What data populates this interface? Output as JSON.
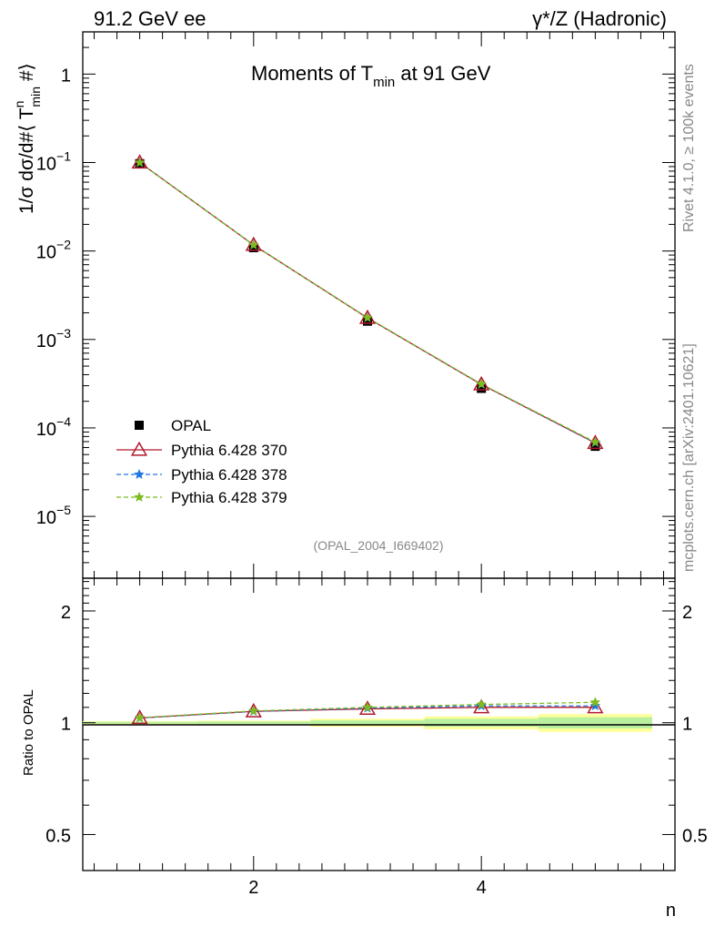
{
  "header": {
    "left": "91.2 GeV ee",
    "right": "γ*/Z (Hadronic)"
  },
  "side_text": {
    "rivet": "Rivet 4.1.0, ≥ 100k events",
    "mcplots": "mcplots.cern.ch [arXiv:2401.10621]"
  },
  "chart_data": [
    {
      "type": "line",
      "title_parts": [
        "Moments of T",
        "min",
        " at 91 GeV"
      ],
      "ylabel": "1/σ  dσ/d#⟨ T^n_min #⟩",
      "ylabel_parts": [
        "1/σ  dσ/d#⟨ T",
        "n",
        "min",
        " #⟩"
      ],
      "log_y": true,
      "xlim": [
        0.5,
        5.7
      ],
      "ylim": [
        2e-06,
        3
      ],
      "y_ticks": [
        {
          "value": 1,
          "base": "1",
          "exp": ""
        },
        {
          "value": 0.1,
          "base": "10",
          "exp": "−1"
        },
        {
          "value": 0.01,
          "base": "10",
          "exp": "−2"
        },
        {
          "value": 0.001,
          "base": "10",
          "exp": "−3"
        },
        {
          "value": 0.0001,
          "base": "10",
          "exp": "−4"
        },
        {
          "value": 1e-05,
          "base": "10",
          "exp": "−5"
        }
      ],
      "x": [
        1,
        2,
        3,
        4,
        5
      ],
      "series": [
        {
          "name": "OPAL",
          "values": [
            0.097,
            0.0109,
            0.00161,
            0.00028,
            6.2e-05
          ],
          "color": "#000000",
          "marker": "square"
        },
        {
          "name": "Pythia 6.428 370",
          "values": [
            0.1,
            0.0117,
            0.00175,
            0.00031,
            6.75e-05
          ],
          "color": "#b2182b",
          "marker": "triangle"
        },
        {
          "name": "Pythia 6.428 378",
          "values": [
            0.1,
            0.0117,
            0.00176,
            0.000311,
            6.82e-05
          ],
          "color": "#1f78e0",
          "marker": "star",
          "dashed": true
        },
        {
          "name": "Pythia 6.428 379",
          "values": [
            0.1,
            0.0117,
            0.00176,
            0.000313,
            6.9e-05
          ],
          "color": "#7dbb1f",
          "marker": "star",
          "dashed": true
        }
      ],
      "annotation": "(OPAL_2004_I669402)",
      "legend_position": "lower-left",
      "grid": false
    },
    {
      "type": "line",
      "ylabel": "Ratio to OPAL",
      "xlabel": "n",
      "log_y": true,
      "xlim": [
        0.5,
        5.7
      ],
      "ylim": [
        0.4,
        2.45
      ],
      "x_ticks": [
        2,
        4
      ],
      "y_ticks": [
        0.5,
        1,
        2
      ],
      "y_tick_labels": [
        "0.5",
        "1",
        "2"
      ],
      "x": [
        1,
        2,
        3,
        4,
        5
      ],
      "band_inner": [
        0.006,
        0.008,
        0.015,
        0.025,
        0.035
      ],
      "band_outer": [
        0.01,
        0.013,
        0.025,
        0.04,
        0.055
      ],
      "series": [
        {
          "name": "Pythia 6.428 370",
          "values": [
            1.03,
            1.073,
            1.09,
            1.1,
            1.1
          ],
          "color": "#b2182b"
        },
        {
          "name": "Pythia 6.428 378",
          "values": [
            1.03,
            1.073,
            1.095,
            1.11,
            1.11
          ],
          "color": "#1f78e0"
        },
        {
          "name": "Pythia 6.428 379",
          "values": [
            1.032,
            1.076,
            1.1,
            1.12,
            1.135
          ],
          "color": "#7dbb1f"
        }
      ]
    }
  ]
}
